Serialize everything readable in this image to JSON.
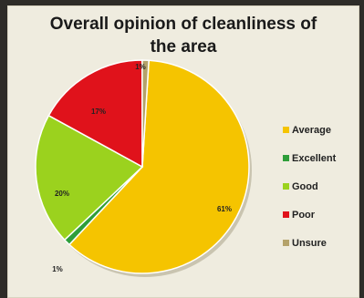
{
  "chart_data": {
    "type": "pie",
    "title_lines": [
      "Overall opinion of cleanliness of",
      "the area"
    ],
    "categories": [
      "Average",
      "Excellent",
      "Good",
      "Poor",
      "Unsure"
    ],
    "values": [
      61,
      1,
      20,
      17,
      1
    ],
    "labels": [
      "61%",
      "1%",
      "20%",
      "17%",
      "1%"
    ],
    "colors": [
      "#f5c400",
      "#2e9e3a",
      "#9bd21e",
      "#e0121b",
      "#b4a26a"
    ],
    "legend_placement": "right"
  }
}
